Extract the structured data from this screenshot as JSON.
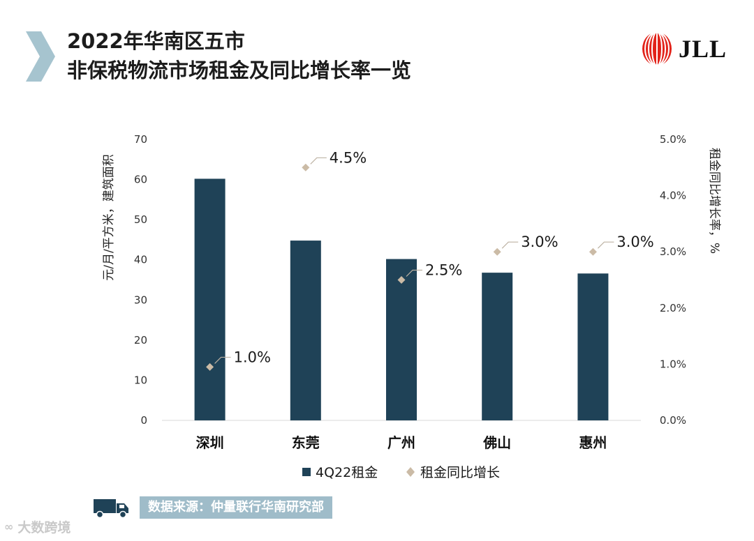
{
  "header": {
    "title_line1": "2022年华南区五市",
    "title_line2": "非保税物流市场租金及同比增长率一览"
  },
  "logo": {
    "text": "JLL"
  },
  "colors": {
    "bar": "#1f4257",
    "marker": "#cbbba6",
    "chevron": "#a6c4cf",
    "grid": "#d9d9d9"
  },
  "chart_data": {
    "type": "bar",
    "categories": [
      "深圳",
      "东莞",
      "广州",
      "佛山",
      "惠州"
    ],
    "series": [
      {
        "name": "4Q22租金",
        "type": "bar",
        "axis": "left",
        "values": [
          60.2,
          44.8,
          40.2,
          36.8,
          36.6
        ]
      },
      {
        "name": "租金同比增长",
        "type": "scatter",
        "axis": "right",
        "values": [
          0.95,
          4.5,
          2.5,
          3.0,
          3.0
        ],
        "labels": [
          "1.0%",
          "4.5%",
          "2.5%",
          "3.0%",
          "3.0%"
        ]
      }
    ],
    "ylabel": "元/月/平方米，建筑面积",
    "ylabel_right": "租金同比增长率，%",
    "ylim": [
      0,
      70
    ],
    "ylim_right": [
      0,
      5
    ],
    "yticks": [
      "70",
      "60",
      "50",
      "40",
      "30",
      "20",
      "10",
      "0"
    ],
    "yticks_right": [
      "5.0%",
      "4.0%",
      "3.0%",
      "2.0%",
      "1.0%",
      "0.0%"
    ],
    "legend": [
      "4Q22租金",
      "租金同比增长"
    ]
  },
  "footer": {
    "source": "数据来源：仲量联行华南研究部",
    "watermark": "大数跨境"
  }
}
